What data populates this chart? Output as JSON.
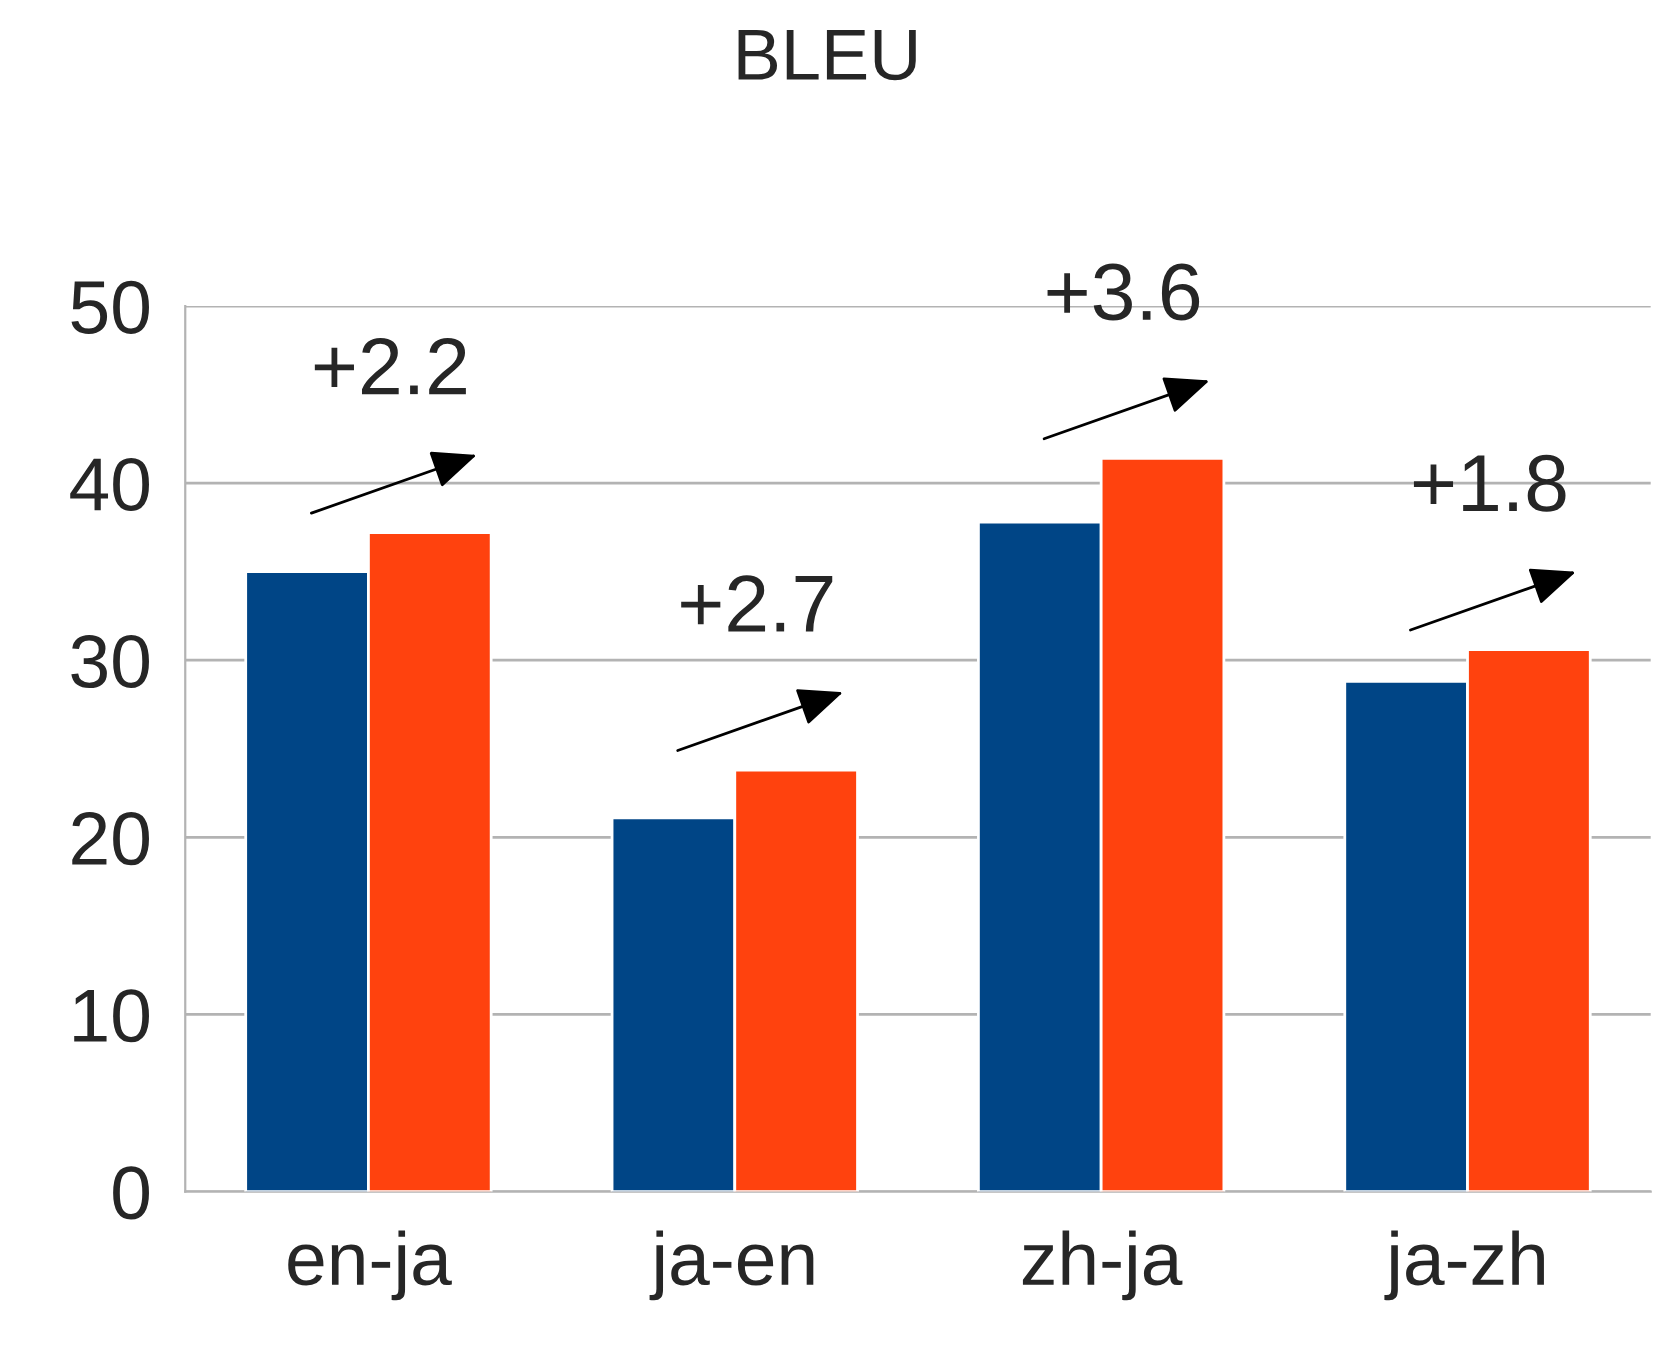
{
  "chart_data": {
    "type": "bar",
    "title": "BLEU",
    "categories": [
      "en-ja",
      "ja-en",
      "zh-ja",
      "ja-zh"
    ],
    "series": [
      {
        "color": "#004586",
        "values": [
          35.0,
          21.1,
          37.8,
          28.8
        ]
      },
      {
        "color": "#ff420e",
        "values": [
          37.2,
          23.8,
          41.4,
          30.6
        ]
      }
    ],
    "ylim": [
      0,
      50
    ],
    "yticks": [
      0,
      10,
      20,
      30,
      40,
      50
    ],
    "grid": "y",
    "legend": false,
    "annotations": [
      {
        "text": "+2.2",
        "x": "en-ja",
        "y": 37.2
      },
      {
        "text": "+2.7",
        "x": "ja-en",
        "y": 23.8
      },
      {
        "text": "+3.6",
        "x": "zh-ja",
        "y": 41.4
      },
      {
        "text": "+1.8",
        "x": "ja-zh",
        "y": 30.6
      }
    ]
  }
}
